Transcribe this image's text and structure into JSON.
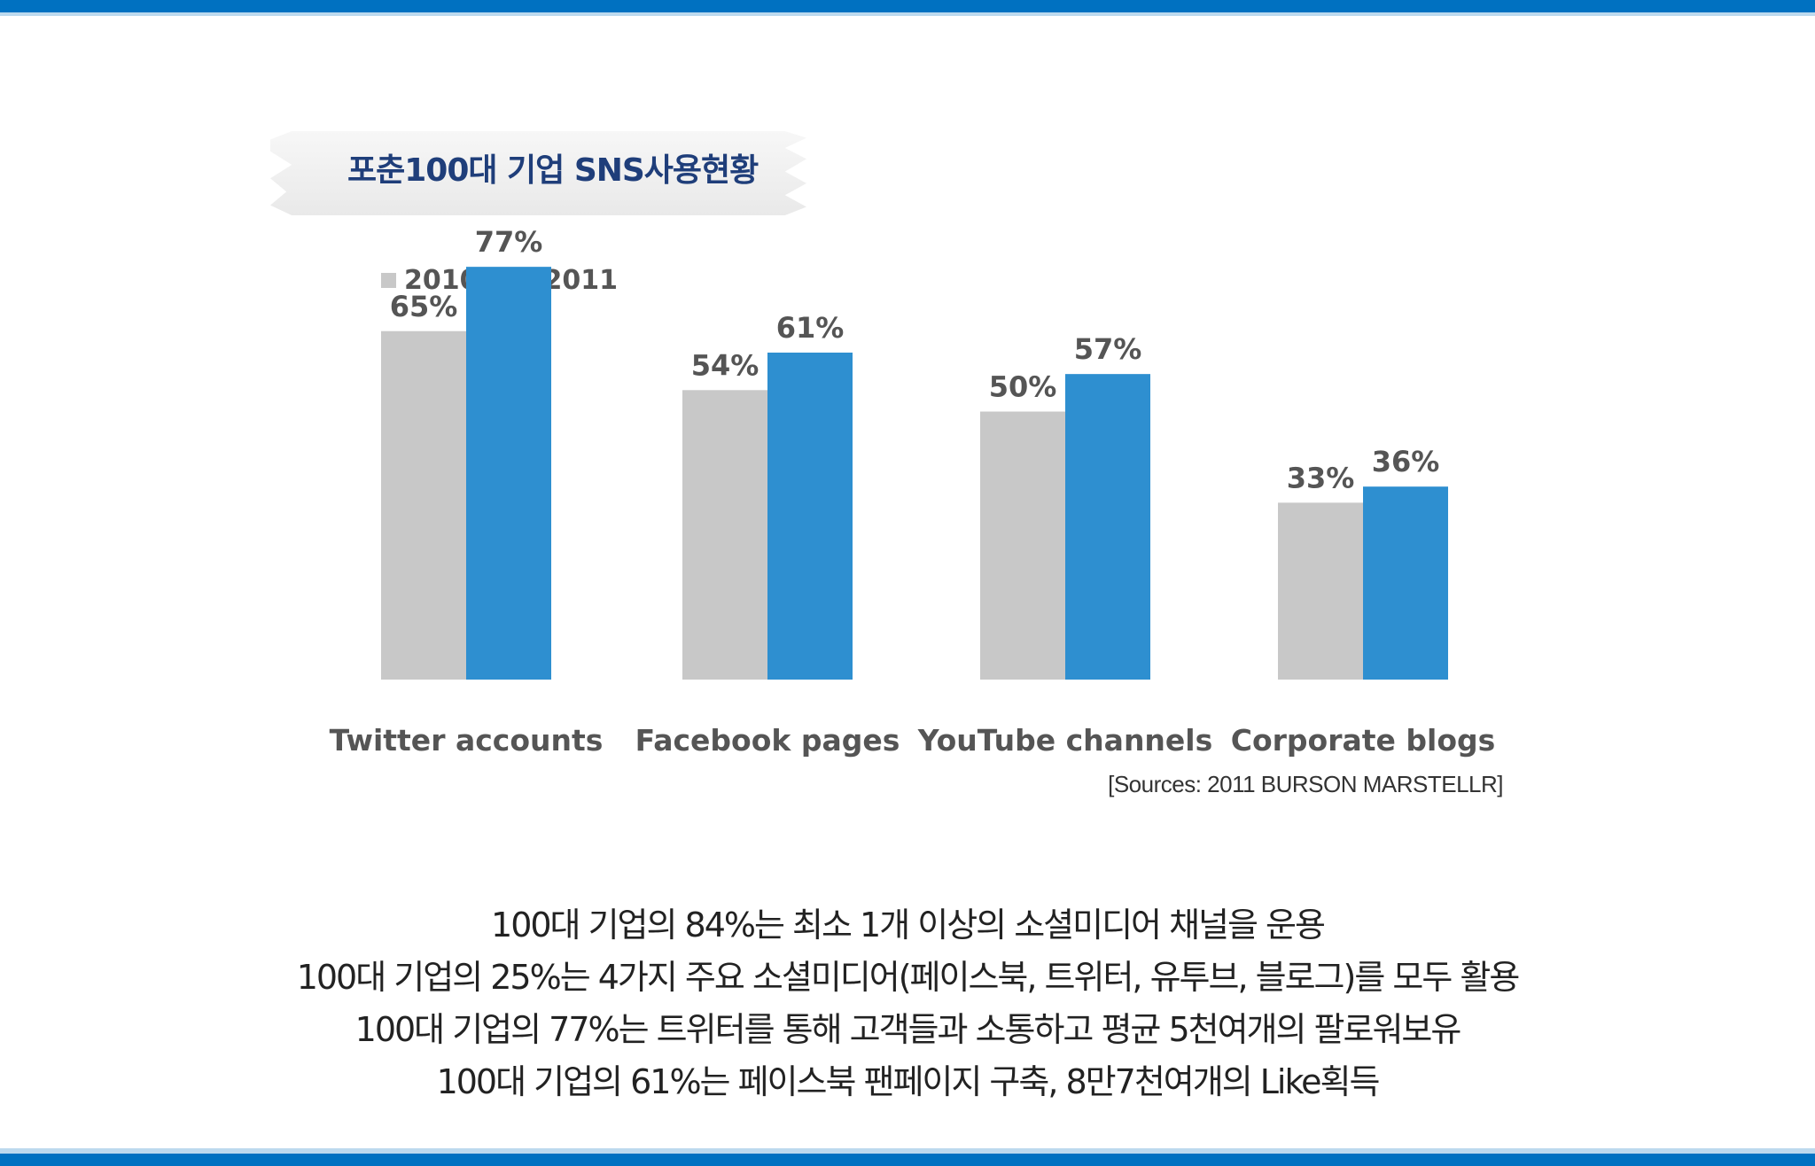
{
  "title": "포춘100대 기업 SNS사용현황",
  "colors": {
    "accent": "#0071c1",
    "series_2010": "#c8c8c8",
    "series_2011": "#2e8fd0"
  },
  "chart_data": {
    "type": "bar",
    "categories": [
      "Twitter accounts",
      "Facebook pages",
      "YouTube channels",
      "Corporate blogs"
    ],
    "series": [
      {
        "name": "2010",
        "values": [
          65,
          54,
          50,
          33
        ],
        "labels": [
          "65%",
          "54%",
          "50%",
          "33%"
        ]
      },
      {
        "name": "2011",
        "values": [
          77,
          61,
          57,
          36
        ],
        "labels": [
          "77%",
          "61%",
          "57%",
          "36%"
        ]
      }
    ],
    "ylim": [
      0,
      100
    ],
    "legend": "top-left",
    "grid": false
  },
  "source": "[Sources: 2011 BURSON MARSTELLR]",
  "notes": [
    "100대 기업의 84%는 최소 1개 이상의 소셜미디어 채널을 운용",
    "100대 기업의 25%는 4가지 주요 소셜미디어(페이스북, 트위터, 유투브, 블로그)를 모두 활용",
    "100대 기업의 77%는 트위터를 통해 고객들과 소통하고 평균 5천여개의 팔로워보유",
    "100대 기업의 61%는 페이스북 팬페이지 구축, 8만7천여개의 Like획득"
  ]
}
